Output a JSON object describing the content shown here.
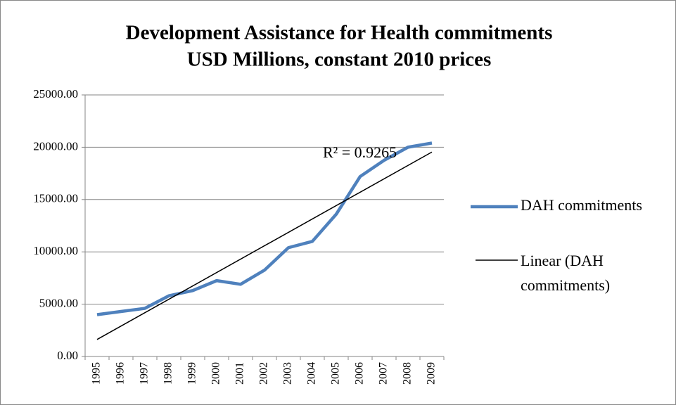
{
  "chart_data": {
    "type": "line",
    "title": [
      "Development Assistance for Health commitments",
      "USD Millions, constant 2010 prices"
    ],
    "categories": [
      "1995",
      "1996",
      "1997",
      "1998",
      "1999",
      "2000",
      "2001",
      "2002",
      "2003",
      "2004",
      "2005",
      "2006",
      "2007",
      "2008",
      "2009"
    ],
    "series": [
      {
        "name": "DAH commitments",
        "color": "#4f81bd",
        "values": [
          4000,
          4300,
          4600,
          5800,
          6300,
          7250,
          6900,
          8250,
          10400,
          11000,
          13600,
          17200,
          18750,
          20000,
          20400
        ]
      }
    ],
    "trendline": {
      "name": "Linear (DAH commitments)",
      "color": "#000000",
      "annotation": "R² = 0.9265"
    },
    "ylim": [
      0,
      25000
    ],
    "yticks": [
      {
        "value": 0,
        "label": "0.00"
      },
      {
        "value": 5000,
        "label": "5000.00"
      },
      {
        "value": 10000,
        "label": "10000.00"
      },
      {
        "value": 15000,
        "label": "15000.00"
      },
      {
        "value": 20000,
        "label": "20000.00"
      },
      {
        "value": 25000,
        "label": "25000.00"
      }
    ],
    "grid": true,
    "legend": "right"
  }
}
